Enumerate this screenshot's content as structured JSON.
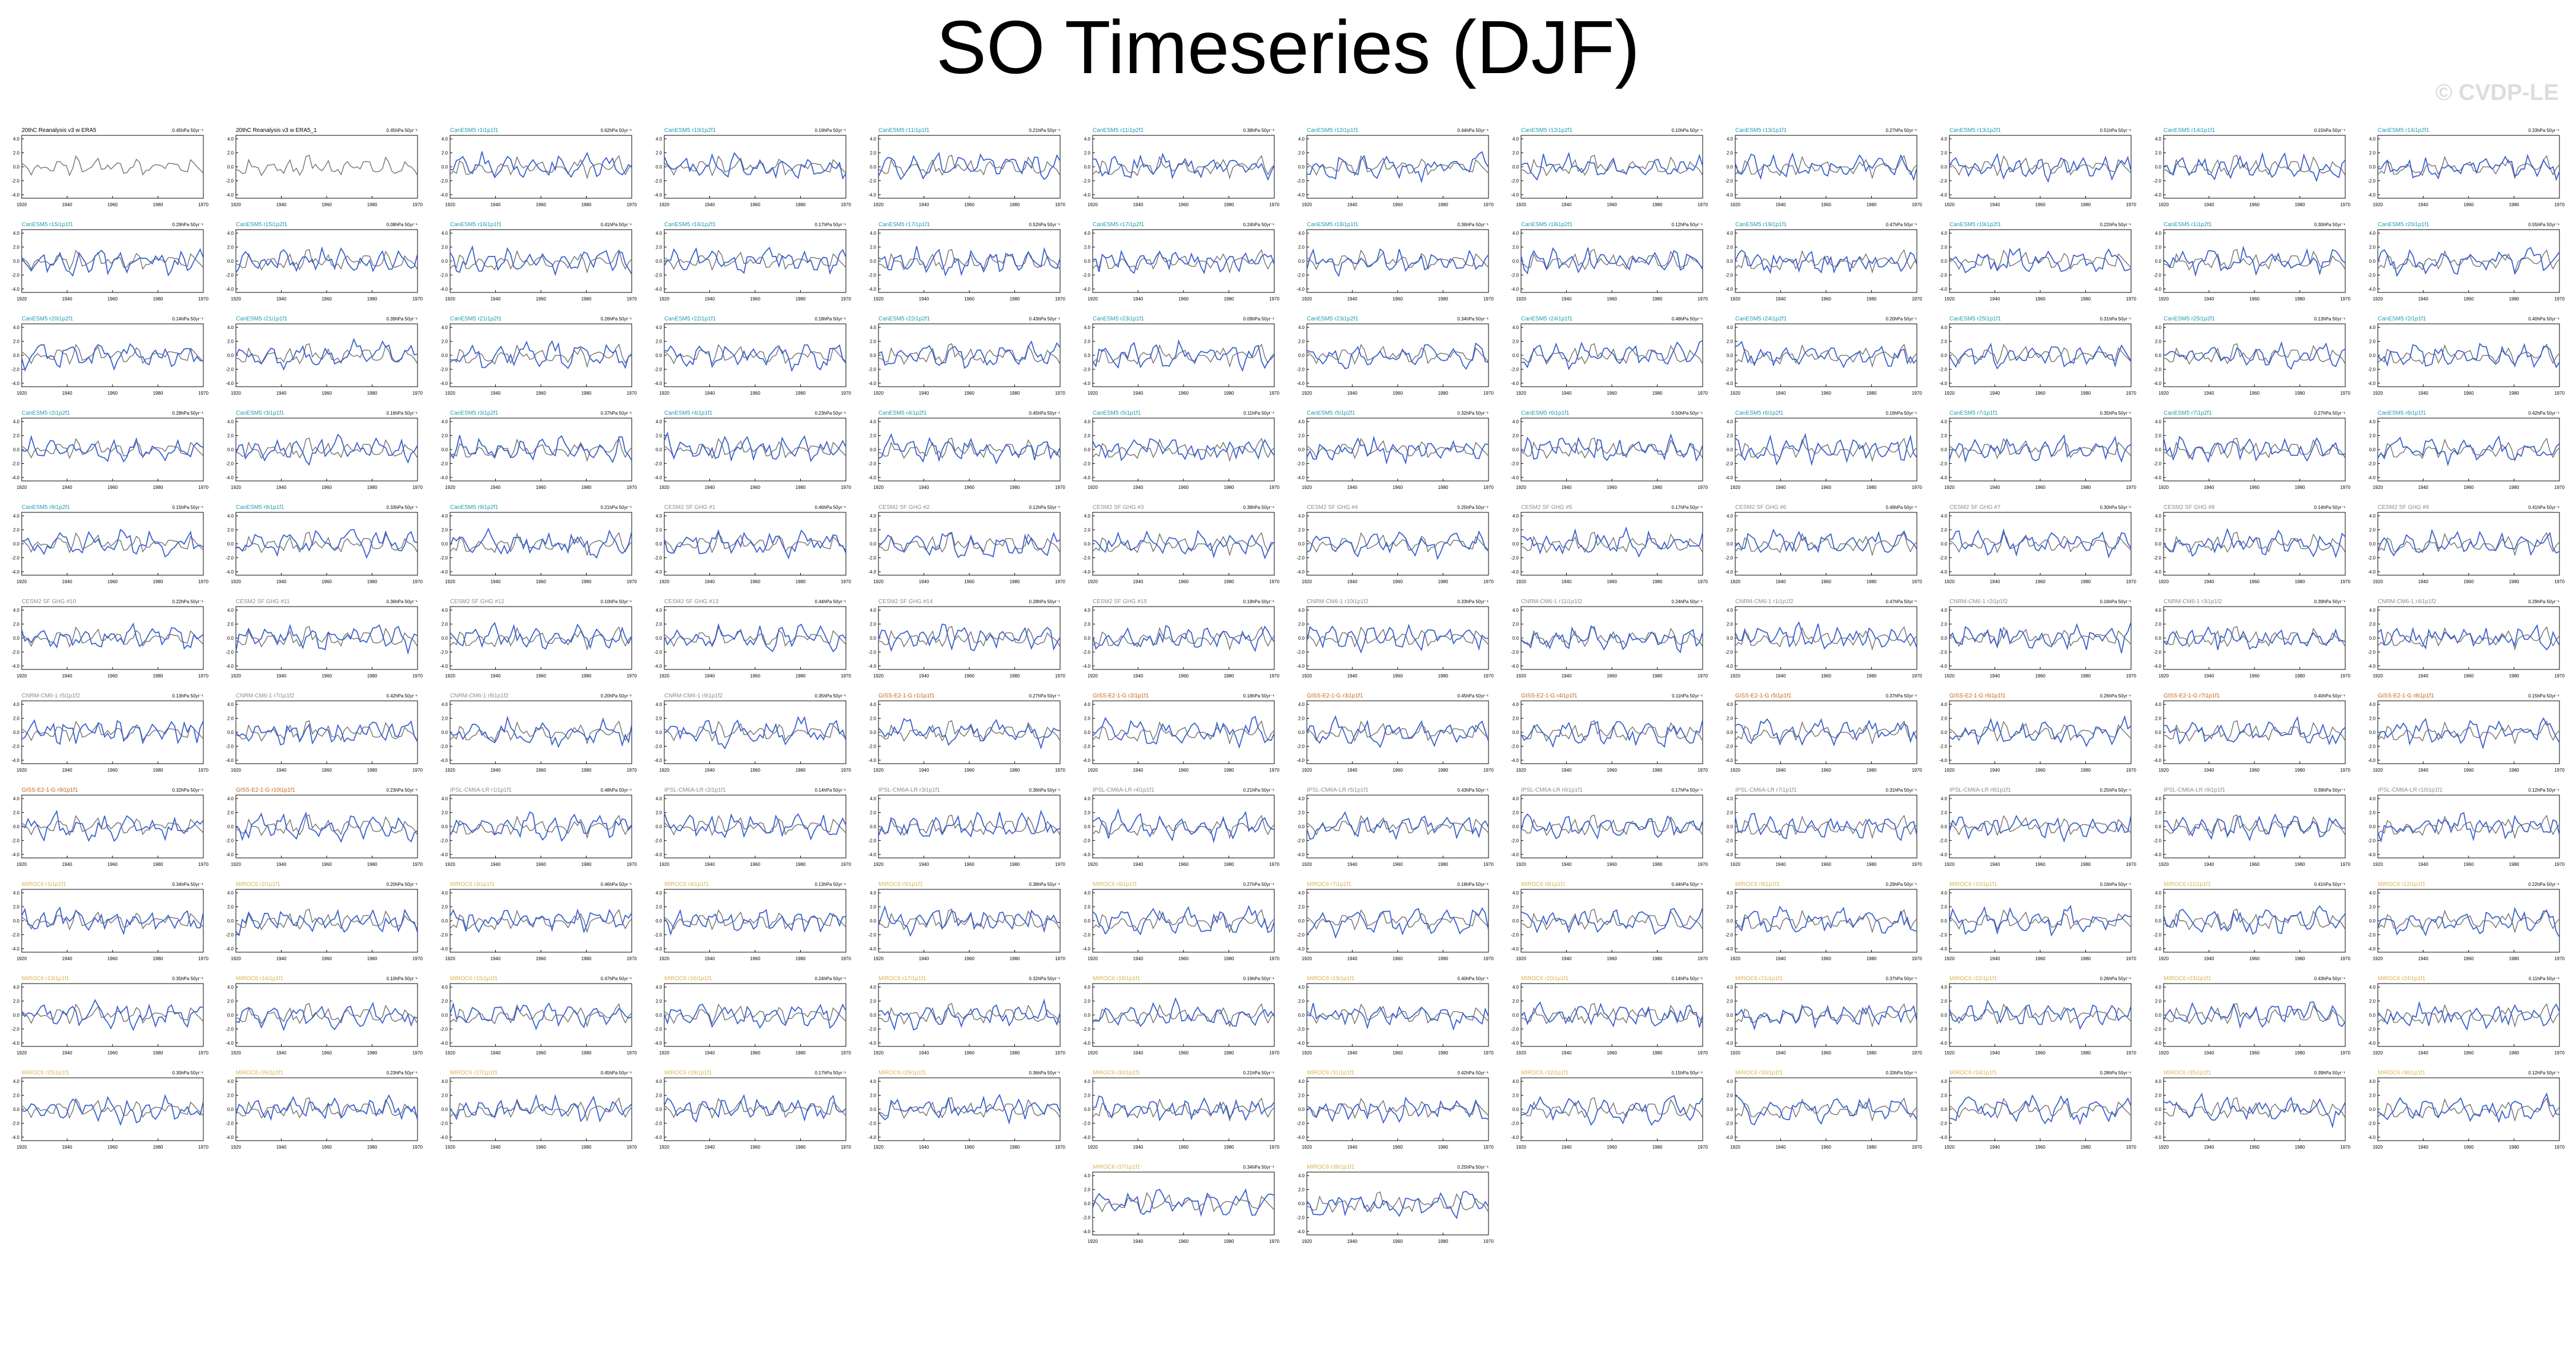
{
  "page": {
    "title": "SO Timeseries (DJF)",
    "watermark": "© CVDP-LE"
  },
  "style": {
    "observed_color": "#707070",
    "model_color": "#3a5fcd",
    "title_colors": {
      "obs": "#000000",
      "cesm1": "#1f9bb0",
      "cesm2": "#8c8c8c",
      "cnrm": "#8c8c8c",
      "giss": "#c86414",
      "ipsl": "#8c8c8c",
      "miroc": "#dcb450"
    }
  },
  "chart_data": {
    "type": "line",
    "shared": {
      "x_ticks": [
        "1920",
        "1940",
        "1960",
        "1980",
        "1970"
      ],
      "y_ticks": [
        "4.0",
        "2.0",
        "0.0",
        "-2.0",
        "-4.0"
      ],
      "ylim": [
        -4.5,
        4.5
      ]
    },
    "panels": [
      {
        "title": "20thC Reanalysis v3 w ERA5",
        "trend": "0.45hPa 50yr⁻¹",
        "group": "obs"
      },
      {
        "title": "20thC Reanalysis v3 w ERA5_1",
        "trend": "0.45hPa 50yr⁻¹",
        "group": "obs"
      },
      {
        "title": "CanESM5 r1i1p1f1",
        "trend": "0.62hPa 50yr⁻¹",
        "group": "cesm1"
      },
      {
        "title": "CanESM5 r10i1p2f1",
        "trend": "0.19hPa 50yr⁻¹",
        "group": "cesm1"
      },
      {
        "title": "CanESM5 r11i1p1f1",
        "trend": "0.21hPa 50yr⁻¹",
        "group": "cesm1"
      },
      {
        "title": "CanESM5 r11i1p2f1",
        "trend": "0.38hPa 50yr⁻¹",
        "group": "cesm1"
      },
      {
        "title": "CanESM5 r12i1p1f1",
        "trend": "0.44hPa 50yr⁻¹",
        "group": "cesm1"
      },
      {
        "title": "CanESM5 r12i1p2f1",
        "trend": "0.10hPa 50yr⁻¹",
        "group": "cesm1"
      },
      {
        "title": "CanESM5 r13i1p1f1",
        "trend": "0.27hPa 50yr⁻¹",
        "group": "cesm1"
      },
      {
        "title": "CanESM5 r13i1p2f1",
        "trend": "0.51hPa 50yr⁻¹",
        "group": "cesm1"
      },
      {
        "title": "CanESM5 r14i1p1f1",
        "trend": "0.15hPa 50yr⁻¹",
        "group": "cesm1"
      },
      {
        "title": "CanESM5 r14i1p2f1",
        "trend": "0.33hPa 50yr⁻¹",
        "group": "cesm1"
      },
      {
        "title": "CanESM5 r15i1p1f1",
        "trend": "0.29hPa 50yr⁻¹",
        "group": "cesm1"
      },
      {
        "title": "CanESM5 r15i1p2f1",
        "trend": "0.08hPa 50yr⁻¹",
        "group": "cesm1"
      },
      {
        "title": "CanESM5 r16i1p1f1",
        "trend": "0.41hPa 50yr⁻¹",
        "group": "cesm1"
      },
      {
        "title": "CanESM5 r16i1p2f1",
        "trend": "0.17hPa 50yr⁻¹",
        "group": "cesm1"
      },
      {
        "title": "CanESM5 r17i1p1f1",
        "trend": "0.52hPa 50yr⁻¹",
        "group": "cesm1"
      },
      {
        "title": "CanESM5 r17i1p2f1",
        "trend": "0.24hPa 50yr⁻¹",
        "group": "cesm1"
      },
      {
        "title": "CanESM5 r18i1p1f1",
        "trend": "0.36hPa 50yr⁻¹",
        "group": "cesm1"
      },
      {
        "title": "CanESM5 r18i1p2f1",
        "trend": "0.12hPa 50yr⁻¹",
        "group": "cesm1"
      },
      {
        "title": "CanESM5 r19i1p1f1",
        "trend": "0.47hPa 50yr⁻¹",
        "group": "cesm1"
      },
      {
        "title": "CanESM5 r19i1p2f1",
        "trend": "0.22hPa 50yr⁻¹",
        "group": "cesm1"
      },
      {
        "title": "CanESM5 r1i1p2f1",
        "trend": "0.30hPa 50yr⁻¹",
        "group": "cesm1"
      },
      {
        "title": "CanESM5 r20i1p1f1",
        "trend": "0.55hPa 50yr⁻¹",
        "group": "cesm1"
      },
      {
        "title": "CanESM5 r20i1p2f1",
        "trend": "0.14hPa 50yr⁻¹",
        "group": "cesm1"
      },
      {
        "title": "CanESM5 r21i1p1f1",
        "trend": "0.39hPa 50yr⁻¹",
        "group": "cesm1"
      },
      {
        "title": "CanESM5 r21i1p2f1",
        "trend": "0.26hPa 50yr⁻¹",
        "group": "cesm1"
      },
      {
        "title": "CanESM5 r22i1p1f1",
        "trend": "0.18hPa 50yr⁻¹",
        "group": "cesm1"
      },
      {
        "title": "CanESM5 r22i1p2f1",
        "trend": "0.43hPa 50yr⁻¹",
        "group": "cesm1"
      },
      {
        "title": "CanESM5 r23i1p1f1",
        "trend": "0.09hPa 50yr⁻¹",
        "group": "cesm1"
      },
      {
        "title": "CanESM5 r23i1p2f1",
        "trend": "0.34hPa 50yr⁻¹",
        "group": "cesm1"
      },
      {
        "title": "CanESM5 r24i1p1f1",
        "trend": "0.48hPa 50yr⁻¹",
        "group": "cesm1"
      },
      {
        "title": "CanESM5 r24i1p2f1",
        "trend": "0.20hPa 50yr⁻¹",
        "group": "cesm1"
      },
      {
        "title": "CanESM5 r25i1p1f1",
        "trend": "0.31hPa 50yr⁻¹",
        "group": "cesm1"
      },
      {
        "title": "CanESM5 r25i1p2f1",
        "trend": "0.13hPa 50yr⁻¹",
        "group": "cesm1"
      },
      {
        "title": "CanESM5 r2i1p1f1",
        "trend": "0.40hPa 50yr⁻¹",
        "group": "cesm1"
      },
      {
        "title": "CanESM5 r2i1p2f1",
        "trend": "0.28hPa 50yr⁻¹",
        "group": "cesm1"
      },
      {
        "title": "CanESM5 r3i1p1f1",
        "trend": "0.16hPa 50yr⁻¹",
        "group": "cesm1"
      },
      {
        "title": "CanESM5 r3i1p2f1",
        "trend": "0.37hPa 50yr⁻¹",
        "group": "cesm1"
      },
      {
        "title": "CanESM5 r4i1p1f1",
        "trend": "0.23hPa 50yr⁻¹",
        "group": "cesm1"
      },
      {
        "title": "CanESM5 r4i1p2f1",
        "trend": "0.45hPa 50yr⁻¹",
        "group": "cesm1"
      },
      {
        "title": "CanESM5 r5i1p1f1",
        "trend": "0.11hPa 50yr⁻¹",
        "group": "cesm1"
      },
      {
        "title": "CanESM5 r5i1p2f1",
        "trend": "0.32hPa 50yr⁻¹",
        "group": "cesm1"
      },
      {
        "title": "CanESM5 r6i1p1f1",
        "trend": "0.50hPa 50yr⁻¹",
        "group": "cesm1"
      },
      {
        "title": "CanESM5 r6i1p2f1",
        "trend": "0.19hPa 50yr⁻¹",
        "group": "cesm1"
      },
      {
        "title": "CanESM5 r7i1p1f1",
        "trend": "0.35hPa 50yr⁻¹",
        "group": "cesm1"
      },
      {
        "title": "CanESM5 r7i1p2f1",
        "trend": "0.27hPa 50yr⁻¹",
        "group": "cesm1"
      },
      {
        "title": "CanESM5 r8i1p1f1",
        "trend": "0.42hPa 50yr⁻¹",
        "group": "cesm1"
      },
      {
        "title": "CanESM5 r8i1p2f1",
        "trend": "0.15hPa 50yr⁻¹",
        "group": "cesm1"
      },
      {
        "title": "CanESM5 r9i1p1f1",
        "trend": "0.33hPa 50yr⁻¹",
        "group": "cesm1"
      },
      {
        "title": "CanESM5 r9i1p2f1",
        "trend": "0.21hPa 50yr⁻¹",
        "group": "cesm1"
      },
      {
        "title": "CESM2 SF GHG #1",
        "trend": "0.46hPa 50yr⁻¹",
        "group": "cesm2"
      },
      {
        "title": "CESM2 SF GHG #2",
        "trend": "0.12hPa 50yr⁻¹",
        "group": "cesm2"
      },
      {
        "title": "CESM2 SF GHG #3",
        "trend": "0.38hPa 50yr⁻¹",
        "group": "cesm2"
      },
      {
        "title": "CESM2 SF GHG #4",
        "trend": "0.25hPa 50yr⁻¹",
        "group": "cesm2"
      },
      {
        "title": "CESM2 SF GHG #5",
        "trend": "0.17hPa 50yr⁻¹",
        "group": "cesm2"
      },
      {
        "title": "CESM2 SF GHG #6",
        "trend": "0.49hPa 50yr⁻¹",
        "group": "cesm2"
      },
      {
        "title": "CESM2 SF GHG #7",
        "trend": "0.30hPa 50yr⁻¹",
        "group": "cesm2"
      },
      {
        "title": "CESM2 SF GHG #8",
        "trend": "0.14hPa 50yr⁻¹",
        "group": "cesm2"
      },
      {
        "title": "CESM2 SF GHG #9",
        "trend": "0.41hPa 50yr⁻¹",
        "group": "cesm2"
      },
      {
        "title": "CESM2 SF GHG #10",
        "trend": "0.22hPa 50yr⁻¹",
        "group": "cesm2"
      },
      {
        "title": "CESM2 SF GHG #11",
        "trend": "0.36hPa 50yr⁻¹",
        "group": "cesm2"
      },
      {
        "title": "CESM2 SF GHG #12",
        "trend": "0.10hPa 50yr⁻¹",
        "group": "cesm2"
      },
      {
        "title": "CESM2 SF GHG #13",
        "trend": "0.44hPa 50yr⁻¹",
        "group": "cesm2"
      },
      {
        "title": "CESM2 SF GHG #14",
        "trend": "0.28hPa 50yr⁻¹",
        "group": "cesm2"
      },
      {
        "title": "CESM2 SF GHG #15",
        "trend": "0.19hPa 50yr⁻¹",
        "group": "cesm2"
      },
      {
        "title": "CNRM-CM6-1 r10i1p1f2",
        "trend": "0.33hPa 50yr⁻¹",
        "group": "cnrm"
      },
      {
        "title": "CNRM-CM6-1 r11i1p1f2",
        "trend": "0.24hPa 50yr⁻¹",
        "group": "cnrm"
      },
      {
        "title": "CNRM-CM6-1 r1i1p1f2",
        "trend": "0.47hPa 50yr⁻¹",
        "group": "cnrm"
      },
      {
        "title": "CNRM-CM6-1 r2i1p1f2",
        "trend": "0.16hPa 50yr⁻¹",
        "group": "cnrm"
      },
      {
        "title": "CNRM-CM6-1 r3i1p1f2",
        "trend": "0.39hPa 50yr⁻¹",
        "group": "cnrm"
      },
      {
        "title": "CNRM-CM6-1 r4i1p1f2",
        "trend": "0.29hPa 50yr⁻¹",
        "group": "cnrm"
      },
      {
        "title": "CNRM-CM6-1 r5i1p1f2",
        "trend": "0.13hPa 50yr⁻¹",
        "group": "cnrm"
      },
      {
        "title": "CNRM-CM6-1 r7i1p1f2",
        "trend": "0.42hPa 50yr⁻¹",
        "group": "cnrm"
      },
      {
        "title": "CNRM-CM6-1 r8i1p1f2",
        "trend": "0.20hPa 50yr⁻¹",
        "group": "cnrm"
      },
      {
        "title": "CNRM-CM6-1 r9i1p1f2",
        "trend": "0.35hPa 50yr⁻¹",
        "group": "cnrm"
      },
      {
        "title": "GISS-E2-1-G r1i1p1f1",
        "trend": "0.27hPa 50yr⁻¹",
        "group": "giss"
      },
      {
        "title": "GISS-E2-1-G r2i1p1f1",
        "trend": "0.18hPa 50yr⁻¹",
        "group": "giss"
      },
      {
        "title": "GISS-E2-1-G r3i1p1f1",
        "trend": "0.45hPa 50yr⁻¹",
        "group": "giss"
      },
      {
        "title": "GISS-E2-1-G r4i1p1f1",
        "trend": "0.11hPa 50yr⁻¹",
        "group": "giss"
      },
      {
        "title": "GISS-E2-1-G r5i1p1f1",
        "trend": "0.37hPa 50yr⁻¹",
        "group": "giss"
      },
      {
        "title": "GISS-E2-1-G r6i1p1f1",
        "trend": "0.26hPa 50yr⁻¹",
        "group": "giss"
      },
      {
        "title": "GISS-E2-1-G r7i1p1f1",
        "trend": "0.40hPa 50yr⁻¹",
        "group": "giss"
      },
      {
        "title": "GISS-E2-1-G r8i1p1f1",
        "trend": "0.15hPa 50yr⁻¹",
        "group": "giss"
      },
      {
        "title": "GISS-E2-1-G r9i1p1f1",
        "trend": "0.32hPa 50yr⁻¹",
        "group": "giss"
      },
      {
        "title": "GISS-E2-1-G r10i1p1f1",
        "trend": "0.23hPa 50yr⁻¹",
        "group": "giss"
      },
      {
        "title": "IPSL-CM6A-LR r1i1p1f1",
        "trend": "0.48hPa 50yr⁻¹",
        "group": "ipsl"
      },
      {
        "title": "IPSL-CM6A-LR r2i1p1f1",
        "trend": "0.14hPa 50yr⁻¹",
        "group": "ipsl"
      },
      {
        "title": "IPSL-CM6A-LR r3i1p1f1",
        "trend": "0.36hPa 50yr⁻¹",
        "group": "ipsl"
      },
      {
        "title": "IPSL-CM6A-LR r4i1p1f1",
        "trend": "0.21hPa 50yr⁻¹",
        "group": "ipsl"
      },
      {
        "title": "IPSL-CM6A-LR r5i1p1f1",
        "trend": "0.43hPa 50yr⁻¹",
        "group": "ipsl"
      },
      {
        "title": "IPSL-CM6A-LR r6i1p1f1",
        "trend": "0.17hPa 50yr⁻¹",
        "group": "ipsl"
      },
      {
        "title": "IPSL-CM6A-LR r7i1p1f1",
        "trend": "0.31hPa 50yr⁻¹",
        "group": "ipsl"
      },
      {
        "title": "IPSL-CM6A-LR r8i1p1f1",
        "trend": "0.25hPa 50yr⁻¹",
        "group": "ipsl"
      },
      {
        "title": "IPSL-CM6A-LR r9i1p1f1",
        "trend": "0.39hPa 50yr⁻¹",
        "group": "ipsl"
      },
      {
        "title": "IPSL-CM6A-LR r10i1p1f1",
        "trend": "0.12hPa 50yr⁻¹",
        "group": "ipsl"
      },
      {
        "title": "MIROC6 r1i1p1f1",
        "trend": "0.34hPa 50yr⁻¹",
        "group": "miroc"
      },
      {
        "title": "MIROC6 r2i1p1f1",
        "trend": "0.20hPa 50yr⁻¹",
        "group": "miroc"
      },
      {
        "title": "MIROC6 r3i1p1f1",
        "trend": "0.46hPa 50yr⁻¹",
        "group": "miroc"
      },
      {
        "title": "MIROC6 r4i1p1f1",
        "trend": "0.13hPa 50yr⁻¹",
        "group": "miroc"
      },
      {
        "title": "MIROC6 r5i1p1f1",
        "trend": "0.38hPa 50yr⁻¹",
        "group": "miroc"
      },
      {
        "title": "MIROC6 r6i1p1f1",
        "trend": "0.27hPa 50yr⁻¹",
        "group": "miroc"
      },
      {
        "title": "MIROC6 r7i1p1f1",
        "trend": "0.18hPa 50yr⁻¹",
        "group": "miroc"
      },
      {
        "title": "MIROC6 r8i1p1f1",
        "trend": "0.44hPa 50yr⁻¹",
        "group": "miroc"
      },
      {
        "title": "MIROC6 r9i1p1f1",
        "trend": "0.29hPa 50yr⁻¹",
        "group": "miroc"
      },
      {
        "title": "MIROC6 r10i1p1f1",
        "trend": "0.16hPa 50yr⁻¹",
        "group": "miroc"
      },
      {
        "title": "MIROC6 r11i1p1f1",
        "trend": "0.41hPa 50yr⁻¹",
        "group": "miroc"
      },
      {
        "title": "MIROC6 r12i1p1f1",
        "trend": "0.22hPa 50yr⁻¹",
        "group": "miroc"
      },
      {
        "title": "MIROC6 r13i1p1f1",
        "trend": "0.35hPa 50yr⁻¹",
        "group": "miroc"
      },
      {
        "title": "MIROC6 r14i1p1f1",
        "trend": "0.10hPa 50yr⁻¹",
        "group": "miroc"
      },
      {
        "title": "MIROC6 r15i1p1f1",
        "trend": "0.47hPa 50yr⁻¹",
        "group": "miroc"
      },
      {
        "title": "MIROC6 r16i1p1f1",
        "trend": "0.24hPa 50yr⁻¹",
        "group": "miroc"
      },
      {
        "title": "MIROC6 r17i1p1f1",
        "trend": "0.32hPa 50yr⁻¹",
        "group": "miroc"
      },
      {
        "title": "MIROC6 r18i1p1f1",
        "trend": "0.19hPa 50yr⁻¹",
        "group": "miroc"
      },
      {
        "title": "MIROC6 r19i1p1f1",
        "trend": "0.40hPa 50yr⁻¹",
        "group": "miroc"
      },
      {
        "title": "MIROC6 r20i1p1f1",
        "trend": "0.14hPa 50yr⁻¹",
        "group": "miroc"
      },
      {
        "title": "MIROC6 r21i1p1f1",
        "trend": "0.37hPa 50yr⁻¹",
        "group": "miroc"
      },
      {
        "title": "MIROC6 r22i1p1f1",
        "trend": "0.26hPa 50yr⁻¹",
        "group": "miroc"
      },
      {
        "title": "MIROC6 r23i1p1f1",
        "trend": "0.43hPa 50yr⁻¹",
        "group": "miroc"
      },
      {
        "title": "MIROC6 r24i1p1f1",
        "trend": "0.11hPa 50yr⁻¹",
        "group": "miroc"
      },
      {
        "title": "MIROC6 r25i1p1f1",
        "trend": "0.30hPa 50yr⁻¹",
        "group": "miroc"
      },
      {
        "title": "MIROC6 r26i1p1f1",
        "trend": "0.23hPa 50yr⁻¹",
        "group": "miroc"
      },
      {
        "title": "MIROC6 r27i1p1f1",
        "trend": "0.45hPa 50yr⁻¹",
        "group": "miroc"
      },
      {
        "title": "MIROC6 r28i1p1f1",
        "trend": "0.17hPa 50yr⁻¹",
        "group": "miroc"
      },
      {
        "title": "MIROC6 r29i1p1f1",
        "trend": "0.36hPa 50yr⁻¹",
        "group": "miroc"
      },
      {
        "title": "MIROC6 r30i1p1f1",
        "trend": "0.21hPa 50yr⁻¹",
        "group": "miroc"
      },
      {
        "title": "MIROC6 r31i1p1f1",
        "trend": "0.42hPa 50yr⁻¹",
        "group": "miroc"
      },
      {
        "title": "MIROC6 r32i1p1f1",
        "trend": "0.15hPa 50yr⁻¹",
        "group": "miroc"
      },
      {
        "title": "MIROC6 r33i1p1f1",
        "trend": "0.33hPa 50yr⁻¹",
        "group": "miroc"
      },
      {
        "title": "MIROC6 r34i1p1f1",
        "trend": "0.28hPa 50yr⁻¹",
        "group": "miroc"
      },
      {
        "title": "MIROC6 r35i1p1f1",
        "trend": "0.39hPa 50yr⁻¹",
        "group": "miroc"
      },
      {
        "title": "MIROC6 r36i1p1f1",
        "trend": "0.12hPa 50yr⁻¹",
        "group": "miroc"
      },
      {
        "title": "MIROC6 r37i1p1f1",
        "trend": "0.34hPa 50yr⁻¹",
        "group": "miroc"
      },
      {
        "title": "MIROC6 r38i1p1f1",
        "trend": "0.25hPa 50yr⁻¹",
        "group": "miroc"
      }
    ]
  }
}
